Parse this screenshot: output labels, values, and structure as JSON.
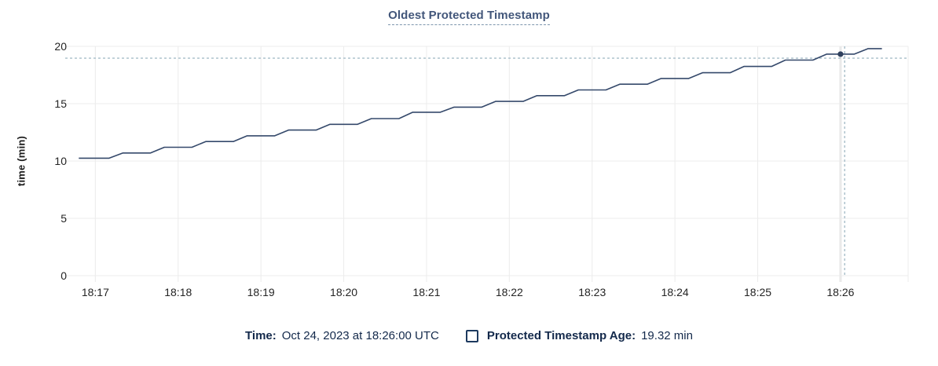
{
  "title": "Oldest Protected Timestamp",
  "y_axis": {
    "label": "time (min)",
    "ticks": [
      0,
      5,
      10,
      15,
      20
    ]
  },
  "x_axis": {
    "ticks": [
      "18:17",
      "18:18",
      "18:19",
      "18:20",
      "18:21",
      "18:22",
      "18:23",
      "18:24",
      "18:25",
      "18:26"
    ]
  },
  "footer": {
    "time_label": "Time:",
    "time_value": "Oct 24, 2023 at 18:26:00 UTC",
    "series_label": "Protected Timestamp Age:",
    "series_value": "19.32 min"
  },
  "colors": {
    "line": "#35496b",
    "point": "#2f415e",
    "gridline": "#ececec",
    "hover_gridline": "#e7e7e7",
    "crosshair": "#a7bdc9",
    "tick_text": "#242424",
    "title_text": "#42567a",
    "legend_text": "#13294b"
  },
  "chart_data": {
    "type": "line",
    "title": "Oldest Protected Timestamp",
    "xlabel": "",
    "ylabel": "time (min)",
    "ylim": [
      0,
      20
    ],
    "grid": true,
    "legend_position": "bottom",
    "x_domain": [
      "18:16:41",
      "18:26:49"
    ],
    "x_tick_times": [
      "18:17:00",
      "18:18:00",
      "18:19:00",
      "18:20:00",
      "18:21:00",
      "18:22:00",
      "18:23:00",
      "18:24:00",
      "18:25:00",
      "18:26:00"
    ],
    "series": [
      {
        "name": "Protected Timestamp Age",
        "unit": "min",
        "points": [
          [
            "18:16:48",
            10.25
          ],
          [
            "18:17:10",
            10.25
          ],
          [
            "18:17:20",
            10.7
          ],
          [
            "18:17:40",
            10.7
          ],
          [
            "18:17:50",
            11.2
          ],
          [
            "18:18:10",
            11.2
          ],
          [
            "18:18:20",
            11.7
          ],
          [
            "18:18:40",
            11.7
          ],
          [
            "18:18:50",
            12.2
          ],
          [
            "18:19:10",
            12.2
          ],
          [
            "18:19:20",
            12.7
          ],
          [
            "18:19:40",
            12.7
          ],
          [
            "18:19:50",
            13.2
          ],
          [
            "18:20:10",
            13.2
          ],
          [
            "18:20:20",
            13.7
          ],
          [
            "18:20:40",
            13.7
          ],
          [
            "18:20:50",
            14.25
          ],
          [
            "18:21:10",
            14.25
          ],
          [
            "18:21:20",
            14.7
          ],
          [
            "18:21:40",
            14.7
          ],
          [
            "18:21:50",
            15.2
          ],
          [
            "18:22:10",
            15.2
          ],
          [
            "18:22:20",
            15.7
          ],
          [
            "18:22:40",
            15.7
          ],
          [
            "18:22:50",
            16.2
          ],
          [
            "18:23:10",
            16.2
          ],
          [
            "18:23:20",
            16.7
          ],
          [
            "18:23:40",
            16.7
          ],
          [
            "18:23:50",
            17.2
          ],
          [
            "18:24:10",
            17.2
          ],
          [
            "18:24:20",
            17.7
          ],
          [
            "18:24:40",
            17.7
          ],
          [
            "18:24:50",
            18.25
          ],
          [
            "18:25:10",
            18.25
          ],
          [
            "18:25:20",
            18.8
          ],
          [
            "18:25:40",
            18.8
          ],
          [
            "18:25:50",
            19.32
          ],
          [
            "18:26:10",
            19.32
          ],
          [
            "18:26:20",
            19.8
          ],
          [
            "18:26:30",
            19.8
          ]
        ]
      }
    ],
    "highlight": {
      "point": {
        "time": "18:26:00",
        "value": 19.32
      },
      "crosshair": {
        "time": "18:26:03",
        "value": 18.97
      },
      "gridline_time": "18:26:00"
    }
  }
}
